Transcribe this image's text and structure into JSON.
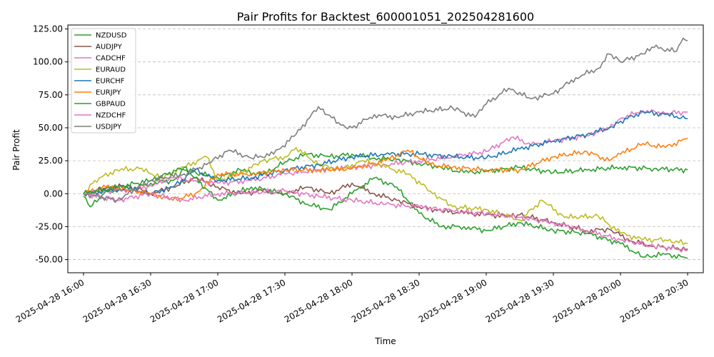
{
  "chart_data": {
    "type": "line",
    "title": "Pair Profits for Backtest_600001051_202504281600",
    "xlabel": "Time",
    "ylabel": "Pair Profit",
    "x_range": [
      "2025-04-28 15:53",
      "2025-04-28 20:37"
    ],
    "ylim": [
      -60,
      128
    ],
    "y_ticks": [
      -50,
      -25,
      0,
      25,
      50,
      75,
      100,
      125
    ],
    "y_tick_labels": [
      "-50.00",
      "-25.00",
      "0.00",
      "25.00",
      "50.00",
      "75.00",
      "100.00",
      "125.00"
    ],
    "x_ticks": [
      "2025-04-28 16:00",
      "2025-04-28 16:30",
      "2025-04-28 17:00",
      "2025-04-28 17:30",
      "2025-04-28 18:00",
      "2025-04-28 18:30",
      "2025-04-28 19:00",
      "2025-04-28 19:30",
      "2025-04-28 20:00",
      "2025-04-28 20:30"
    ],
    "x_tick_labels": [
      "2025-04-28 16:00",
      "2025-04-28 16:30",
      "2025-04-28 17:00",
      "2025-04-28 17:30",
      "2025-04-28 18:00",
      "2025-04-28 18:30",
      "2025-04-28 19:00",
      "2025-04-28 19:30",
      "2025-04-28 20:00",
      "2025-04-28 20:30"
    ],
    "grid": "horizontal dashed",
    "legend_position": "top-left",
    "series": [
      {
        "name": "NZDUSD",
        "color": "#2ca02c",
        "points": [
          [
            "2025-04-28 16:00",
            -2
          ],
          [
            "2025-04-28 16:03",
            -10
          ],
          [
            "2025-04-28 16:10",
            2
          ],
          [
            "2025-04-28 16:20",
            3
          ],
          [
            "2025-04-28 16:30",
            8
          ],
          [
            "2025-04-28 16:40",
            10
          ],
          [
            "2025-04-28 16:45",
            18
          ],
          [
            "2025-04-28 17:00",
            12
          ],
          [
            "2025-04-28 17:10",
            18
          ],
          [
            "2025-04-28 17:20",
            14
          ],
          [
            "2025-04-28 17:30",
            24
          ],
          [
            "2025-04-28 17:40",
            30
          ],
          [
            "2025-04-28 17:50",
            28
          ],
          [
            "2025-04-28 18:00",
            30
          ],
          [
            "2025-04-28 18:10",
            27
          ],
          [
            "2025-04-28 18:20",
            26
          ],
          [
            "2025-04-28 18:30",
            23
          ],
          [
            "2025-04-28 18:40",
            20
          ],
          [
            "2025-04-28 18:50",
            16
          ],
          [
            "2025-04-28 19:00",
            17
          ],
          [
            "2025-04-28 19:15",
            20
          ],
          [
            "2025-04-28 19:30",
            16
          ],
          [
            "2025-04-28 19:45",
            18
          ],
          [
            "2025-04-28 20:00",
            20
          ],
          [
            "2025-04-28 20:15",
            19
          ],
          [
            "2025-04-28 20:30",
            18
          ]
        ]
      },
      {
        "name": "AUDJPY",
        "color": "#8c564b",
        "points": [
          [
            "2025-04-28 16:00",
            0
          ],
          [
            "2025-04-28 16:10",
            4
          ],
          [
            "2025-04-28 16:20",
            6
          ],
          [
            "2025-04-28 16:30",
            0
          ],
          [
            "2025-04-28 16:40",
            5
          ],
          [
            "2025-04-28 16:50",
            12
          ],
          [
            "2025-04-28 17:00",
            5
          ],
          [
            "2025-04-28 17:10",
            0
          ],
          [
            "2025-04-28 17:20",
            2
          ],
          [
            "2025-04-28 17:30",
            0
          ],
          [
            "2025-04-28 17:40",
            5
          ],
          [
            "2025-04-28 17:50",
            0
          ],
          [
            "2025-04-28 18:00",
            8
          ],
          [
            "2025-04-28 18:10",
            0
          ],
          [
            "2025-04-28 18:20",
            -5
          ],
          [
            "2025-04-28 18:30",
            -10
          ],
          [
            "2025-04-28 18:40",
            -13
          ],
          [
            "2025-04-28 18:50",
            -15
          ],
          [
            "2025-04-28 19:00",
            -16
          ],
          [
            "2025-04-28 19:10",
            -17
          ],
          [
            "2025-04-28 19:15",
            -16
          ],
          [
            "2025-04-28 19:30",
            -22
          ],
          [
            "2025-04-28 19:45",
            -28
          ],
          [
            "2025-04-28 19:55",
            -27
          ],
          [
            "2025-04-28 20:05",
            -36
          ],
          [
            "2025-04-28 20:15",
            -40
          ],
          [
            "2025-04-28 20:30",
            -42
          ]
        ]
      },
      {
        "name": "CADCHF",
        "color": "#e377c2",
        "points": [
          [
            "2025-04-28 16:00",
            0
          ],
          [
            "2025-04-28 16:10",
            2
          ],
          [
            "2025-04-28 16:20",
            3
          ],
          [
            "2025-04-28 16:30",
            6
          ],
          [
            "2025-04-28 16:40",
            12
          ],
          [
            "2025-04-28 16:50",
            10
          ],
          [
            "2025-04-28 17:00",
            8
          ],
          [
            "2025-04-28 17:15",
            10
          ],
          [
            "2025-04-28 17:30",
            15
          ],
          [
            "2025-04-28 17:45",
            18
          ],
          [
            "2025-04-28 18:00",
            20
          ],
          [
            "2025-04-28 18:15",
            22
          ],
          [
            "2025-04-28 18:30",
            25
          ],
          [
            "2025-04-28 18:45",
            28
          ],
          [
            "2025-04-28 19:00",
            32
          ],
          [
            "2025-04-28 19:12",
            43
          ],
          [
            "2025-04-28 19:20",
            37
          ],
          [
            "2025-04-28 19:30",
            40
          ],
          [
            "2025-04-28 19:45",
            44
          ],
          [
            "2025-04-28 19:55",
            50
          ],
          [
            "2025-04-28 20:00",
            57
          ],
          [
            "2025-04-28 20:10",
            63
          ],
          [
            "2025-04-28 20:20",
            61
          ],
          [
            "2025-04-28 20:30",
            62
          ]
        ]
      },
      {
        "name": "EURAUD",
        "color": "#bcbd22",
        "points": [
          [
            "2025-04-28 16:00",
            0
          ],
          [
            "2025-04-28 16:05",
            10
          ],
          [
            "2025-04-28 16:15",
            18
          ],
          [
            "2025-04-28 16:25",
            19
          ],
          [
            "2025-04-28 16:35",
            12
          ],
          [
            "2025-04-28 16:45",
            20
          ],
          [
            "2025-04-28 16:55",
            28
          ],
          [
            "2025-04-28 17:00",
            10
          ],
          [
            "2025-04-28 17:10",
            15
          ],
          [
            "2025-04-28 17:20",
            25
          ],
          [
            "2025-04-28 17:30",
            28
          ],
          [
            "2025-04-28 17:35",
            35
          ],
          [
            "2025-04-28 17:45",
            22
          ],
          [
            "2025-04-28 17:55",
            18
          ],
          [
            "2025-04-28 18:05",
            25
          ],
          [
            "2025-04-28 18:15",
            20
          ],
          [
            "2025-04-28 18:25",
            15
          ],
          [
            "2025-04-28 18:35",
            2
          ],
          [
            "2025-04-28 18:45",
            -10
          ],
          [
            "2025-04-28 19:00",
            -12
          ],
          [
            "2025-04-28 19:15",
            -20
          ],
          [
            "2025-04-28 19:25",
            -5
          ],
          [
            "2025-04-28 19:35",
            -18
          ],
          [
            "2025-04-28 19:50",
            -17
          ],
          [
            "2025-04-28 20:00",
            -30
          ],
          [
            "2025-04-28 20:10",
            -35
          ],
          [
            "2025-04-28 20:20",
            -35
          ],
          [
            "2025-04-28 20:30",
            -38
          ]
        ]
      },
      {
        "name": "EURCHF",
        "color": "#1f77b4",
        "points": [
          [
            "2025-04-28 16:00",
            0
          ],
          [
            "2025-04-28 16:10",
            2
          ],
          [
            "2025-04-28 16:20",
            4
          ],
          [
            "2025-04-28 16:30",
            0
          ],
          [
            "2025-04-28 16:40",
            5
          ],
          [
            "2025-04-28 16:50",
            18
          ],
          [
            "2025-04-28 17:00",
            10
          ],
          [
            "2025-04-28 17:15",
            12
          ],
          [
            "2025-04-28 17:30",
            18
          ],
          [
            "2025-04-28 17:45",
            22
          ],
          [
            "2025-04-28 18:00",
            28
          ],
          [
            "2025-04-28 18:15",
            30
          ],
          [
            "2025-04-28 18:30",
            30
          ],
          [
            "2025-04-28 18:45",
            28
          ],
          [
            "2025-04-28 19:00",
            27
          ],
          [
            "2025-04-28 19:15",
            34
          ],
          [
            "2025-04-28 19:30",
            40
          ],
          [
            "2025-04-28 19:45",
            45
          ],
          [
            "2025-04-28 19:55",
            50
          ],
          [
            "2025-04-28 20:00",
            55
          ],
          [
            "2025-04-28 20:10",
            62
          ],
          [
            "2025-04-28 20:20",
            60
          ],
          [
            "2025-04-28 20:30",
            57
          ]
        ]
      },
      {
        "name": "EURJPY",
        "color": "#ff7f0e",
        "points": [
          [
            "2025-04-28 16:00",
            0
          ],
          [
            "2025-04-28 16:10",
            5
          ],
          [
            "2025-04-28 16:20",
            3
          ],
          [
            "2025-04-28 16:30",
            0
          ],
          [
            "2025-04-28 16:40",
            -5
          ],
          [
            "2025-04-28 16:50",
            0
          ],
          [
            "2025-04-28 17:00",
            15
          ],
          [
            "2025-04-28 17:15",
            15
          ],
          [
            "2025-04-28 17:30",
            18
          ],
          [
            "2025-04-28 17:45",
            18
          ],
          [
            "2025-04-28 18:00",
            19
          ],
          [
            "2025-04-28 18:15",
            25
          ],
          [
            "2025-04-28 18:25",
            33
          ],
          [
            "2025-04-28 18:35",
            22
          ],
          [
            "2025-04-28 18:45",
            20
          ],
          [
            "2025-04-28 19:00",
            18
          ],
          [
            "2025-04-28 19:15",
            18
          ],
          [
            "2025-04-28 19:30",
            28
          ],
          [
            "2025-04-28 19:45",
            32
          ],
          [
            "2025-04-28 19:55",
            25
          ],
          [
            "2025-04-28 20:00",
            30
          ],
          [
            "2025-04-28 20:10",
            38
          ],
          [
            "2025-04-28 20:20",
            35
          ],
          [
            "2025-04-28 20:30",
            42
          ]
        ]
      },
      {
        "name": "GBPAUD",
        "color": "#2ca02c",
        "points": [
          [
            "2025-04-28 16:00",
            0
          ],
          [
            "2025-04-28 16:15",
            5
          ],
          [
            "2025-04-28 16:30",
            10
          ],
          [
            "2025-04-28 16:45",
            20
          ],
          [
            "2025-04-28 17:00",
            -5
          ],
          [
            "2025-04-28 17:15",
            5
          ],
          [
            "2025-04-28 17:30",
            0
          ],
          [
            "2025-04-28 17:40",
            -8
          ],
          [
            "2025-04-28 17:50",
            -12
          ],
          [
            "2025-04-28 18:00",
            0
          ],
          [
            "2025-04-28 18:10",
            12
          ],
          [
            "2025-04-28 18:20",
            5
          ],
          [
            "2025-04-28 18:30",
            -15
          ],
          [
            "2025-04-28 18:40",
            -25
          ],
          [
            "2025-04-28 18:50",
            -25
          ],
          [
            "2025-04-28 19:00",
            -28
          ],
          [
            "2025-04-28 19:15",
            -22
          ],
          [
            "2025-04-28 19:30",
            -28
          ],
          [
            "2025-04-28 19:45",
            -30
          ],
          [
            "2025-04-28 20:00",
            -38
          ],
          [
            "2025-04-28 20:10",
            -48
          ],
          [
            "2025-04-28 20:20",
            -46
          ],
          [
            "2025-04-28 20:30",
            -49
          ]
        ]
      },
      {
        "name": "NZDCHF",
        "color": "#e377c2",
        "points": [
          [
            "2025-04-28 16:00",
            0
          ],
          [
            "2025-04-28 16:15",
            -5
          ],
          [
            "2025-04-28 16:30",
            0
          ],
          [
            "2025-04-28 16:45",
            -5
          ],
          [
            "2025-04-28 17:00",
            0
          ],
          [
            "2025-04-28 17:30",
            2
          ],
          [
            "2025-04-28 17:45",
            -2
          ],
          [
            "2025-04-28 18:00",
            -5
          ],
          [
            "2025-04-28 18:15",
            -8
          ],
          [
            "2025-04-28 18:30",
            -10
          ],
          [
            "2025-04-28 18:45",
            -13
          ],
          [
            "2025-04-28 19:00",
            -15
          ],
          [
            "2025-04-28 19:15",
            -18
          ],
          [
            "2025-04-28 19:30",
            -22
          ],
          [
            "2025-04-28 19:45",
            -28
          ],
          [
            "2025-04-28 20:00",
            -35
          ],
          [
            "2025-04-28 20:15",
            -40
          ],
          [
            "2025-04-28 20:30",
            -43
          ]
        ]
      },
      {
        "name": "USDJPY",
        "color": "#7f7f7f",
        "points": [
          [
            "2025-04-28 16:00",
            0
          ],
          [
            "2025-04-28 16:15",
            -5
          ],
          [
            "2025-04-28 16:30",
            10
          ],
          [
            "2025-04-28 16:45",
            15
          ],
          [
            "2025-04-28 16:55",
            22
          ],
          [
            "2025-04-28 17:05",
            33
          ],
          [
            "2025-04-28 17:15",
            27
          ],
          [
            "2025-04-28 17:25",
            30
          ],
          [
            "2025-04-28 17:35",
            45
          ],
          [
            "2025-04-28 17:45",
            66
          ],
          [
            "2025-04-28 17:55",
            52
          ],
          [
            "2025-04-28 18:00",
            50
          ],
          [
            "2025-04-28 18:10",
            60
          ],
          [
            "2025-04-28 18:20",
            58
          ],
          [
            "2025-04-28 18:30",
            62
          ],
          [
            "2025-04-28 18:45",
            65
          ],
          [
            "2025-04-28 18:55",
            58
          ],
          [
            "2025-04-28 19:00",
            68
          ],
          [
            "2025-04-28 19:10",
            80
          ],
          [
            "2025-04-28 19:20",
            72
          ],
          [
            "2025-04-28 19:30",
            76
          ],
          [
            "2025-04-28 19:40",
            88
          ],
          [
            "2025-04-28 19:50",
            95
          ],
          [
            "2025-04-28 19:55",
            106
          ],
          [
            "2025-04-28 20:00",
            100
          ],
          [
            "2025-04-28 20:10",
            106
          ],
          [
            "2025-04-28 20:15",
            111
          ],
          [
            "2025-04-28 20:25",
            108
          ],
          [
            "2025-04-28 20:28",
            118
          ],
          [
            "2025-04-28 20:30",
            116
          ]
        ]
      }
    ]
  }
}
